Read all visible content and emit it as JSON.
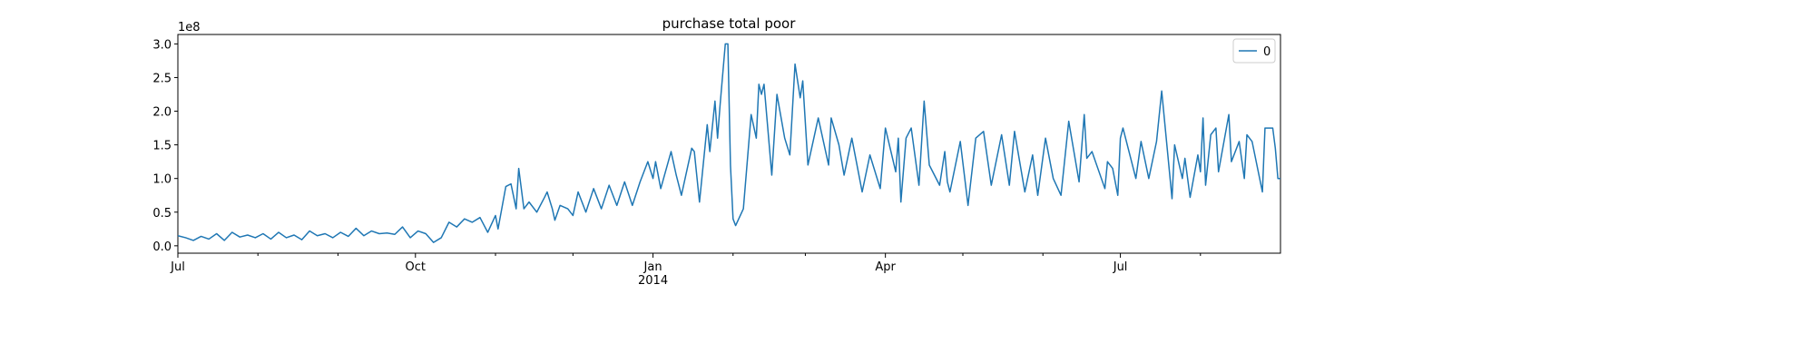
{
  "chart_data": {
    "type": "line",
    "title": "purchase total poor",
    "y_offset_label": "1e8",
    "x": [
      0,
      3,
      6,
      9,
      12,
      15,
      18,
      21,
      24,
      27,
      30,
      33,
      36,
      39,
      42,
      45,
      48,
      51,
      54,
      57,
      60,
      63,
      66,
      69,
      72,
      75,
      78,
      81,
      84,
      87,
      90,
      93,
      96,
      99,
      102,
      105,
      108,
      111,
      114,
      117,
      120,
      123,
      124,
      127,
      129,
      131,
      132,
      134,
      136,
      139,
      142,
      143,
      145,
      146,
      148,
      151,
      153,
      155,
      158,
      161,
      164,
      167,
      170,
      173,
      176,
      179,
      182,
      184,
      185,
      187,
      191,
      193,
      195,
      199,
      200,
      202,
      205,
      206,
      208,
      209,
      210,
      212,
      213,
      214,
      215,
      216,
      219,
      222,
      224,
      225,
      226,
      227,
      230,
      232,
      235,
      237,
      239,
      241,
      242,
      244,
      248,
      252,
      253,
      256,
      258,
      261,
      265,
      268,
      272,
      274,
      278,
      279,
      280,
      282,
      284,
      287,
      289,
      291,
      295,
      297,
      298,
      299,
      303,
      306,
      309,
      312,
      315,
      319,
      322,
      324,
      328,
      331,
      333,
      336,
      339,
      342,
      345,
      349,
      351,
      352,
      354,
      359,
      360,
      362,
      364,
      365,
      366,
      371,
      373,
      376,
      379,
      381,
      385,
      386,
      389,
      390,
      392,
      395,
      396,
      397,
      398,
      400,
      402,
      403,
      407,
      408,
      411,
      413,
      414,
      416,
      420,
      421,
      424,
      425,
      426,
      427
    ],
    "series": [
      {
        "name": "0",
        "color": "#1f77b4",
        "values": [
          0.15,
          0.12,
          0.08,
          0.14,
          0.1,
          0.18,
          0.08,
          0.2,
          0.13,
          0.16,
          0.12,
          0.18,
          0.1,
          0.2,
          0.12,
          0.16,
          0.09,
          0.22,
          0.15,
          0.18,
          0.12,
          0.2,
          0.14,
          0.26,
          0.15,
          0.22,
          0.18,
          0.19,
          0.17,
          0.28,
          0.12,
          0.22,
          0.18,
          0.05,
          0.12,
          0.35,
          0.28,
          0.4,
          0.35,
          0.42,
          0.2,
          0.45,
          0.25,
          0.88,
          0.92,
          0.55,
          1.15,
          0.55,
          0.65,
          0.5,
          0.72,
          0.8,
          0.55,
          0.38,
          0.6,
          0.55,
          0.45,
          0.8,
          0.5,
          0.85,
          0.55,
          0.9,
          0.6,
          0.95,
          0.6,
          0.95,
          1.25,
          1.0,
          1.25,
          0.85,
          1.4,
          1.05,
          0.75,
          1.45,
          1.4,
          0.65,
          1.8,
          1.4,
          2.15,
          1.6,
          2.1,
          3.0,
          3.0,
          1.2,
          0.4,
          0.3,
          0.55,
          1.95,
          1.6,
          2.4,
          2.25,
          2.4,
          1.05,
          2.25,
          1.6,
          1.35,
          2.7,
          2.2,
          2.45,
          1.2,
          1.9,
          1.2,
          1.9,
          1.5,
          1.05,
          1.6,
          0.8,
          1.35,
          0.85,
          1.75,
          1.1,
          1.6,
          0.65,
          1.6,
          1.75,
          0.9,
          2.15,
          1.2,
          0.9,
          1.4,
          0.95,
          0.8,
          1.55,
          0.6,
          1.6,
          1.7,
          0.9,
          1.65,
          0.9,
          1.7,
          0.8,
          1.35,
          0.75,
          1.6,
          1.0,
          0.75,
          1.85,
          0.95,
          1.95,
          1.3,
          1.4,
          0.85,
          1.25,
          1.15,
          0.75,
          1.6,
          1.75,
          1.0,
          1.55,
          1.0,
          1.55,
          2.3,
          0.7,
          1.5,
          1.0,
          1.3,
          0.72,
          1.35,
          1.1,
          1.9,
          0.9,
          1.65,
          1.75,
          1.1,
          1.95,
          1.25,
          1.55,
          1.0,
          1.65,
          1.55,
          0.8,
          1.75,
          1.75,
          1.45,
          1.0,
          1.0
        ]
      }
    ],
    "xlim": [
      0,
      427
    ],
    "xticks": [
      {
        "value": 0,
        "label": "Jul"
      },
      {
        "value": 92,
        "label": "Oct"
      },
      {
        "value": 184,
        "label": "Jan\n2014"
      },
      {
        "value": 274,
        "label": "Apr"
      },
      {
        "value": 365,
        "label": "Jul"
      }
    ],
    "xminor": [
      31,
      62,
      123,
      153,
      215,
      243,
      304,
      335,
      396
    ],
    "ylim": [
      -0.11,
      3.14
    ],
    "yticks": [
      {
        "value": 0,
        "label": "0.0"
      },
      {
        "value": 0.5,
        "label": "0.5"
      },
      {
        "value": 1,
        "label": "1.0"
      },
      {
        "value": 1.5,
        "label": "1.5"
      },
      {
        "value": 2,
        "label": "2.0"
      },
      {
        "value": 2.5,
        "label": "2.5"
      },
      {
        "value": 3,
        "label": "3.0"
      }
    ],
    "legend": "upper right"
  }
}
